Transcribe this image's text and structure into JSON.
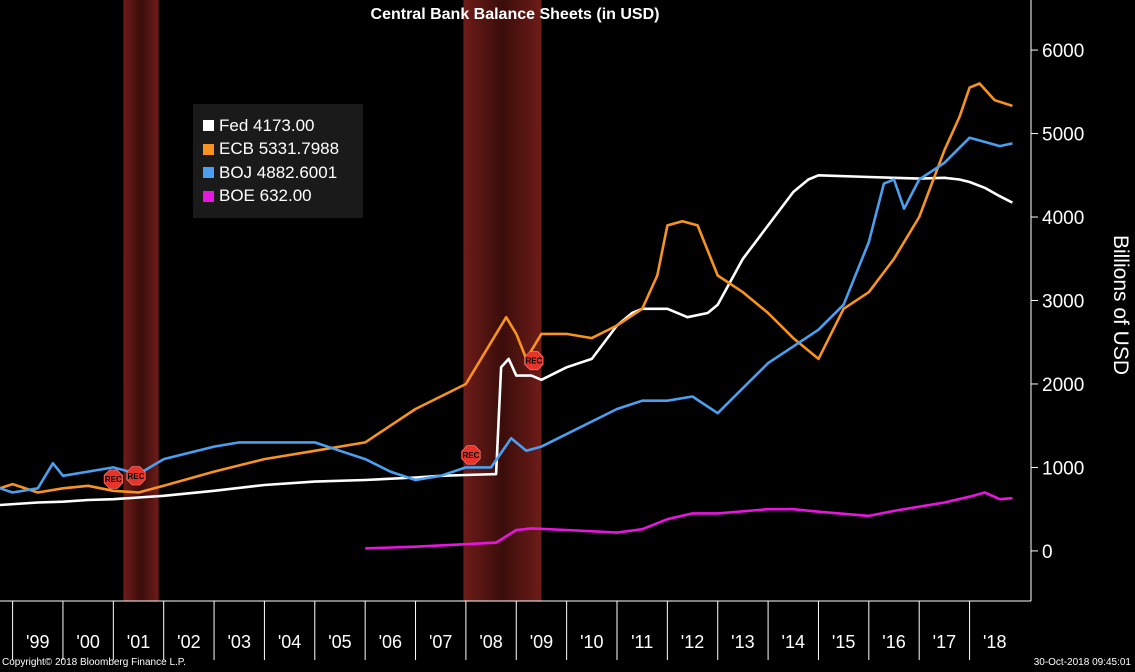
{
  "chart_data": {
    "type": "line",
    "title": "Central Bank Balance Sheets (in USD)",
    "ylabel": "Billions of USD",
    "ylim": [
      -600,
      6600
    ],
    "y_ticks": [
      0,
      1000,
      2000,
      3000,
      4000,
      5000,
      6000
    ],
    "x_range": [
      1998.75,
      2019.2
    ],
    "x_tick_labels": [
      "'99",
      "'00",
      "'01",
      "'02",
      "'03",
      "'04",
      "'05",
      "'06",
      "'07",
      "'08",
      "'09",
      "'10",
      "'11",
      "'12",
      "'13",
      "'14",
      "'15",
      "'16",
      "'17",
      "'18"
    ],
    "recessions": [
      [
        2001.2,
        2001.9
      ],
      [
        2007.95,
        2009.5
      ]
    ],
    "rec_markers": [
      {
        "label": "REC",
        "x": 2001.0,
        "y": 860
      },
      {
        "label": "REC",
        "x": 2001.45,
        "y": 900
      },
      {
        "label": "REC",
        "x": 2008.1,
        "y": 1150
      },
      {
        "label": "REC",
        "x": 2009.35,
        "y": 2280
      }
    ],
    "series": [
      {
        "name": "Fed",
        "value_label": "4173.00",
        "color": "#ffffff",
        "x": [
          1998.75,
          1999.5,
          2000.0,
          2000.5,
          2001.0,
          2001.5,
          2002.0,
          2003.0,
          2004.0,
          2005.0,
          2006.0,
          2007.0,
          2007.5,
          2008.0,
          2008.6,
          2008.7,
          2008.85,
          2009.0,
          2009.3,
          2009.5,
          2010.0,
          2010.5,
          2011.0,
          2011.3,
          2011.5,
          2012.0,
          2012.4,
          2012.8,
          2013.0,
          2013.5,
          2014.0,
          2014.5,
          2014.8,
          2015.0,
          2016.0,
          2017.0,
          2017.5,
          2017.8,
          2018.0,
          2018.3,
          2018.6,
          2018.85
        ],
        "y": [
          550,
          580,
          590,
          610,
          620,
          640,
          660,
          720,
          790,
          830,
          850,
          880,
          900,
          910,
          920,
          2200,
          2300,
          2100,
          2100,
          2050,
          2200,
          2300,
          2700,
          2850,
          2900,
          2900,
          2800,
          2850,
          2950,
          3500,
          3900,
          4300,
          4450,
          4500,
          4480,
          4460,
          4470,
          4450,
          4420,
          4350,
          4250,
          4173
        ]
      },
      {
        "name": "ECB",
        "value_label": "5331.7988",
        "color": "#f7931e",
        "x": [
          1998.75,
          1999.0,
          1999.5,
          2000.0,
          2000.5,
          2001.0,
          2001.5,
          2002.0,
          2003.0,
          2004.0,
          2005.0,
          2006.0,
          2006.5,
          2007.0,
          2007.5,
          2008.0,
          2008.5,
          2008.8,
          2009.0,
          2009.2,
          2009.5,
          2010.0,
          2010.5,
          2011.0,
          2011.5,
          2011.8,
          2012.0,
          2012.3,
          2012.6,
          2013.0,
          2013.5,
          2014.0,
          2014.5,
          2015.0,
          2015.5,
          2016.0,
          2016.5,
          2017.0,
          2017.5,
          2017.8,
          2018.0,
          2018.2,
          2018.5,
          2018.85
        ],
        "y": [
          750,
          800,
          700,
          750,
          780,
          720,
          700,
          780,
          950,
          1100,
          1200,
          1300,
          1500,
          1700,
          1850,
          2000,
          2500,
          2800,
          2600,
          2300,
          2600,
          2600,
          2550,
          2700,
          2900,
          3300,
          3900,
          3950,
          3900,
          3300,
          3100,
          2850,
          2550,
          2300,
          2900,
          3100,
          3500,
          4000,
          4800,
          5200,
          5550,
          5600,
          5400,
          5331.7988
        ]
      },
      {
        "name": "BOJ",
        "value_label": "4882.6001",
        "color": "#4a9ff0",
        "x": [
          1998.75,
          1999.0,
          1999.5,
          1999.8,
          2000.0,
          2000.5,
          2001.0,
          2001.5,
          2002.0,
          2003.0,
          2003.5,
          2004.0,
          2004.5,
          2005.0,
          2005.5,
          2006.0,
          2006.5,
          2007.0,
          2007.5,
          2008.0,
          2008.5,
          2008.9,
          2009.2,
          2009.5,
          2010.0,
          2010.5,
          2011.0,
          2011.5,
          2012.0,
          2012.5,
          2013.0,
          2013.5,
          2014.0,
          2014.5,
          2015.0,
          2015.5,
          2016.0,
          2016.3,
          2016.5,
          2016.7,
          2017.0,
          2017.5,
          2018.0,
          2018.3,
          2018.6,
          2018.85
        ],
        "y": [
          750,
          700,
          750,
          1050,
          900,
          950,
          1000,
          920,
          1100,
          1250,
          1300,
          1300,
          1300,
          1300,
          1200,
          1100,
          950,
          850,
          900,
          1000,
          1000,
          1350,
          1200,
          1250,
          1400,
          1550,
          1700,
          1800,
          1800,
          1850,
          1650,
          1950,
          2250,
          2450,
          2650,
          2950,
          3700,
          4400,
          4450,
          4100,
          4450,
          4650,
          4950,
          4900,
          4850,
          4882.6001
        ]
      },
      {
        "name": "BOE",
        "value_label": "632.00",
        "color": "#e815e0",
        "x": [
          2006.0,
          2007.0,
          2008.0,
          2008.6,
          2009.0,
          2009.3,
          2010.0,
          2011.0,
          2011.5,
          2012.0,
          2012.5,
          2013.0,
          2014.0,
          2014.5,
          2015.0,
          2016.0,
          2016.5,
          2017.0,
          2017.5,
          2018.0,
          2018.3,
          2018.6,
          2018.85
        ],
        "y": [
          30,
          50,
          80,
          100,
          250,
          270,
          250,
          220,
          260,
          380,
          450,
          450,
          500,
          500,
          470,
          420,
          480,
          530,
          580,
          650,
          700,
          620,
          632
        ]
      }
    ]
  },
  "footer": {
    "copyright": "Copyright© 2018 Bloomberg Finance L.P.",
    "timestamp": "30-Oct-2018 09:45:01"
  }
}
